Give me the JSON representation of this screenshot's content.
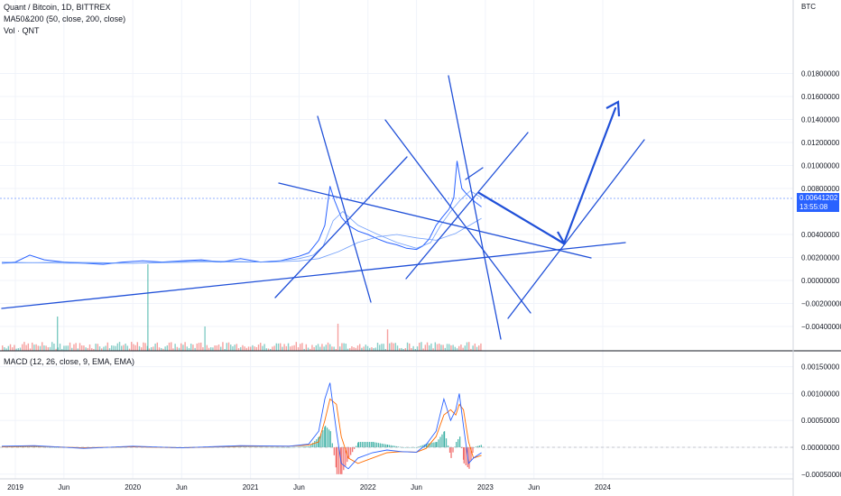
{
  "header": {
    "title": "Quant / Bitcoin, 1D, BITTREX",
    "ma": "MA50&200 (50, close, 200, close)",
    "vol": "Vol · QNT",
    "macd": "MACD (12, 26, close, 9, EMA, EMA)"
  },
  "price_axis": {
    "currency": "BTC",
    "labels": [
      "0.01800000",
      "0.01600000",
      "0.01400000",
      "0.01200000",
      "0.01000000",
      "0.00800000",
      "0.00400000",
      "0.00200000",
      "0.00000000",
      "−0.00200000",
      "−0.00400000"
    ],
    "current_price": "0.00641202",
    "countdown": "13:55:08"
  },
  "macd_axis": {
    "labels": [
      "0.00150000",
      "0.00100000",
      "0.00050000",
      "0.00000000",
      "−0.00050000"
    ]
  },
  "time_axis": {
    "labels": [
      "2019",
      "Jun",
      "2020",
      "Jun",
      "2021",
      "Jun",
      "2022",
      "Jun",
      "2023",
      "Jun",
      "2024"
    ]
  },
  "colors": {
    "price_line": "#2962ff",
    "ma_line": "#5b8ff9",
    "drawing": "#2050d8",
    "macd_line": "#2962ff",
    "signal_line": "#ff6d00",
    "hist_up": "#26a69a",
    "hist_down": "#ef5350",
    "vol_up": "#26a69a",
    "vol_down": "#ef5350"
  },
  "chart_data": {
    "type": "line",
    "series": [
      {
        "name": "Quant / Bitcoin",
        "x": [
          "2018-11-20",
          "2019-01-01",
          "2019-02-15",
          "2019-04-01",
          "2019-06-01",
          "2019-08-01",
          "2019-10-01",
          "2019-12-01",
          "2020-02-01",
          "2020-04-01",
          "2020-06-01",
          "2020-08-01",
          "2020-10-01",
          "2020-12-01",
          "2021-02-01",
          "2021-04-01",
          "2021-05-01",
          "2021-06-01",
          "2021-07-01",
          "2021-08-01",
          "2021-08-20",
          "2021-09-05",
          "2021-09-20",
          "2021-10-10",
          "2021-11-01",
          "2021-12-01",
          "2022-01-01",
          "2022-02-01",
          "2022-03-01",
          "2022-04-01",
          "2022-05-01",
          "2022-06-01",
          "2022-06-20",
          "2022-07-10",
          "2022-08-01",
          "2022-08-20",
          "2022-09-10",
          "2022-09-25",
          "2022-10-05",
          "2022-10-20",
          "2022-11-01",
          "2022-11-15",
          "2022-12-01",
          "2022-12-20"
        ],
        "y": [
          0.0015,
          0.0016,
          0.0022,
          0.0018,
          0.0016,
          0.0015,
          0.0014,
          0.0016,
          0.0017,
          0.0016,
          0.0017,
          0.0018,
          0.0016,
          0.0019,
          0.0016,
          0.0017,
          0.0019,
          0.0021,
          0.0024,
          0.0035,
          0.0048,
          0.0082,
          0.0069,
          0.0055,
          0.0048,
          0.0043,
          0.004,
          0.0036,
          0.0033,
          0.0031,
          0.0028,
          0.0027,
          0.003,
          0.0036,
          0.0048,
          0.0055,
          0.0062,
          0.0072,
          0.0104,
          0.008,
          0.0076,
          0.0072,
          0.0068,
          0.0064
        ]
      },
      {
        "name": "MA50",
        "x": [
          "2018-11-20",
          "2019-06-01",
          "2020-01-01",
          "2020-08-01",
          "2021-03-01",
          "2021-06-01",
          "2021-07-15",
          "2021-08-15",
          "2021-09-15",
          "2021-10-15",
          "2021-12-01",
          "2022-02-01",
          "2022-04-01",
          "2022-06-01",
          "2022-07-15",
          "2022-08-15",
          "2022-09-15",
          "2022-10-15",
          "2022-11-15",
          "2022-12-20"
        ],
        "y": [
          0.0015,
          0.0016,
          0.0015,
          0.0017,
          0.0016,
          0.0019,
          0.0022,
          0.003,
          0.0052,
          0.006,
          0.0048,
          0.004,
          0.0033,
          0.0028,
          0.0033,
          0.0048,
          0.006,
          0.007,
          0.0078,
          0.0072
        ]
      },
      {
        "name": "MA200",
        "x": [
          "2018-11-20",
          "2019-06-01",
          "2020-01-01",
          "2020-08-01",
          "2021-03-01",
          "2021-06-01",
          "2021-08-01",
          "2021-10-01",
          "2021-12-01",
          "2022-02-01",
          "2022-04-01",
          "2022-06-01",
          "2022-08-01",
          "2022-10-01",
          "2022-12-20"
        ],
        "y": [
          0.0016,
          0.0015,
          0.0015,
          0.0016,
          0.0016,
          0.0017,
          0.0019,
          0.0025,
          0.0033,
          0.0038,
          0.004,
          0.0037,
          0.0035,
          0.0041,
          0.0054
        ]
      }
    ],
    "macd": {
      "x": [
        "2018-11-20",
        "2019-03-01",
        "2019-08-01",
        "2020-01-01",
        "2020-06-01",
        "2020-12-01",
        "2021-05-01",
        "2021-07-01",
        "2021-08-01",
        "2021-08-20",
        "2021-09-05",
        "2021-09-25",
        "2021-10-10",
        "2021-11-01",
        "2021-12-01",
        "2022-01-15",
        "2022-03-01",
        "2022-04-15",
        "2022-06-01",
        "2022-07-01",
        "2022-08-01",
        "2022-08-25",
        "2022-09-15",
        "2022-10-01",
        "2022-10-12",
        "2022-10-25",
        "2022-11-10",
        "2022-11-25",
        "2022-12-20"
      ],
      "macd": [
        2e-05,
        3e-05,
        -2e-05,
        2e-05,
        -1e-05,
        3e-05,
        2e-05,
        6e-05,
        0.0003,
        0.0009,
        0.0012,
        0.0003,
        -0.0003,
        -0.0004,
        -0.0002,
        -0.0001,
        -5e-05,
        -8e-05,
        -9e-05,
        5e-05,
        0.0003,
        0.0009,
        0.0005,
        0.0007,
        0.001,
        0.0004,
        -0.0003,
        -0.0002,
        -0.0001
      ],
      "signal": [
        1e-05,
        2e-05,
        -1e-05,
        1e-05,
        -1e-05,
        2e-05,
        2e-05,
        4e-05,
        0.0001,
        0.0005,
        0.0009,
        0.0008,
        0.0002,
        -0.0002,
        -0.0003,
        -0.0002,
        -0.0001,
        -8e-05,
        -9e-05,
        -2e-05,
        0.0002,
        0.0006,
        0.0007,
        0.0006,
        0.0008,
        0.0007,
        0.0001,
        -0.0002,
        -0.00015
      ]
    },
    "ylim": [
      -0.0045,
      0.0195
    ],
    "macd_ylim": [
      -0.0006,
      0.0017
    ],
    "grid": true,
    "log_scale": false
  }
}
